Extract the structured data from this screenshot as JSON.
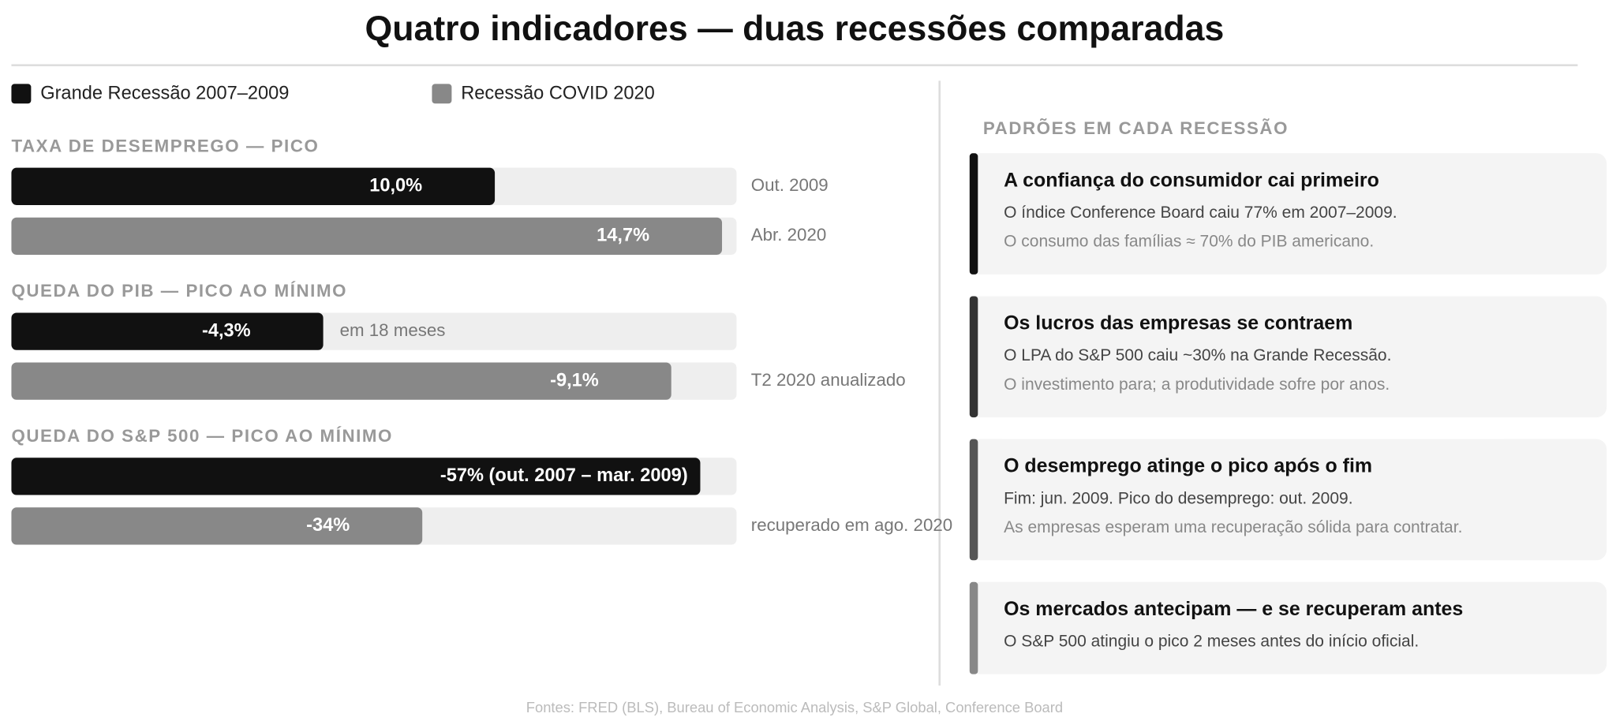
{
  "title": "Quatro indicadores — duas recessões comparadas",
  "legend": [
    {
      "name": "Grande Recessão 2007–2009",
      "color": "#111111"
    },
    {
      "name": "Recessão COVID 2020",
      "color": "#888888"
    }
  ],
  "chart_data": [
    {
      "type": "bar",
      "title": "TAXA DE DESEMPREGO — PICO",
      "values": [
        10.0,
        14.7
      ],
      "value_labels": [
        "10,0%",
        "14,7%"
      ],
      "notes": [
        "Out. 2009",
        "Abr. 2020"
      ],
      "xlim": [
        0,
        15
      ]
    },
    {
      "type": "bar",
      "title": "QUEDA DO PIB — PICO AO MÍNIMO",
      "values": [
        -4.3,
        -9.1
      ],
      "value_labels": [
        "-4,3%",
        "-9,1%"
      ],
      "notes": [
        "em 18 meses",
        "T2 2020 anualizado"
      ],
      "xlim": [
        0,
        -10
      ]
    },
    {
      "type": "bar",
      "title": "QUEDA DO S&P 500 — PICO AO MÍNIMO",
      "values": [
        -57,
        -34
      ],
      "value_labels": [
        "-57% (out. 2007 – mar. 2009)",
        "-34%"
      ],
      "notes": [
        null,
        "recuperado em ago. 2020"
      ],
      "xlim": [
        0,
        -60
      ]
    }
  ],
  "patterns": {
    "title": "PADRÕES EM CADA RECESSÃO",
    "cards": [
      {
        "title": "A confiança do consumidor cai primeiro",
        "lines": [
          "O índice Conference Board caiu 77% em 2007–2009.",
          "O consumo das famílias ≈ 70% do PIB americano."
        ],
        "accent": "#111111"
      },
      {
        "title": "Os lucros das empresas se contraem",
        "lines": [
          "O LPA do S&P 500 caiu ~30% na Grande Recessão.",
          "O investimento para; a produtividade sofre por anos."
        ],
        "accent": "#333333"
      },
      {
        "title": "O desemprego atinge o pico após o fim",
        "lines": [
          "Fim: jun. 2009. Pico do desemprego: out. 2009.",
          "As empresas esperam uma recuperação sólida para contratar."
        ],
        "accent": "#555555"
      },
      {
        "title": "Os mercados antecipam — e se recuperam antes",
        "lines": [
          "O S&P 500 atingiu o pico 2 meses antes do início oficial."
        ],
        "accent": "#888888"
      }
    ]
  },
  "footer": "Fontes: FRED (BLS), Bureau of Economic Analysis, S&P Global, Conference Board"
}
